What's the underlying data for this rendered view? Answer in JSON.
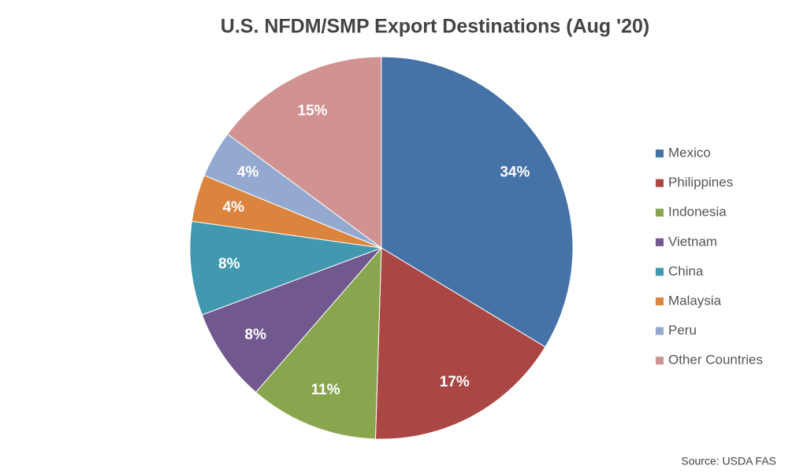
{
  "chart_data": {
    "type": "pie",
    "title": "U.S. NFDM/SMP Export Destinations (Aug '20)",
    "categories": [
      "Mexico",
      "Philippines",
      "Indonesia",
      "Vietnam",
      "China",
      "Malaysia",
      "Peru",
      "Other Countries"
    ],
    "values": [
      34,
      17,
      11,
      8,
      8,
      4,
      4,
      15
    ],
    "value_labels": [
      "34%",
      "17%",
      "11%",
      "8%",
      "8%",
      "4%",
      "4%",
      "15%"
    ],
    "colors": [
      "#4572a7",
      "#aa4643",
      "#89a54e",
      "#71588f",
      "#4198af",
      "#db843d",
      "#93a9cf",
      "#d19392"
    ],
    "legend": "right",
    "source": "Source: USDA FAS"
  }
}
